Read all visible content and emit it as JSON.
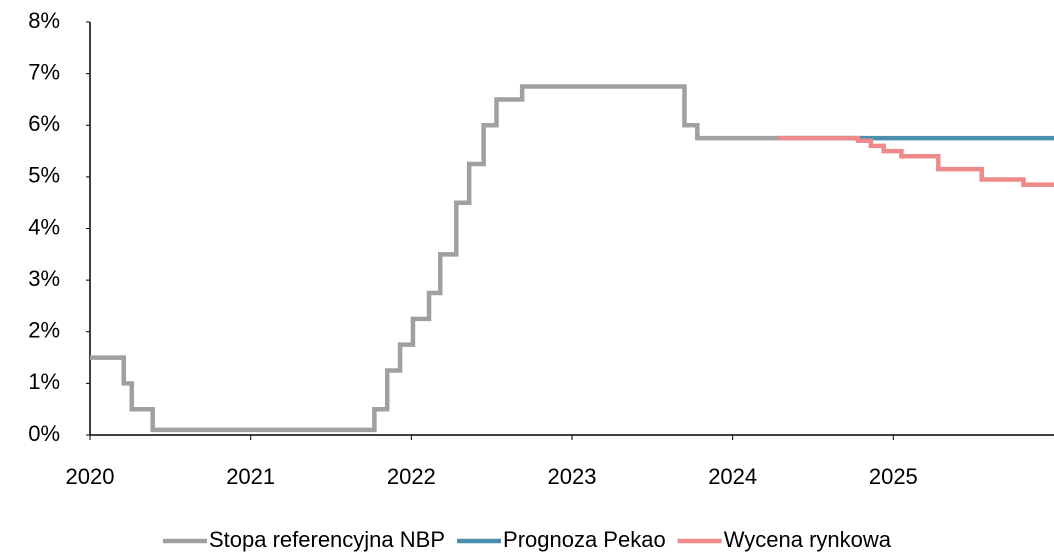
{
  "chart_data": {
    "type": "line",
    "xlim": [
      2020,
      2026
    ],
    "xticks": [
      2020,
      2021,
      2022,
      2023,
      2024,
      2025
    ],
    "ylim": [
      0,
      8
    ],
    "yticks": [
      {
        "value": 0,
        "label": "0%"
      },
      {
        "value": 1,
        "label": "1%"
      },
      {
        "value": 2,
        "label": "2%"
      },
      {
        "value": 3,
        "label": "3%"
      },
      {
        "value": 4,
        "label": "4%"
      },
      {
        "value": 5,
        "label": "5%"
      },
      {
        "value": 6,
        "label": "6%"
      },
      {
        "value": 7,
        "label": "7%"
      },
      {
        "value": 8,
        "label": "8%"
      }
    ],
    "legend": "bottom",
    "series": [
      {
        "name": "Stopa referencyjna NBP",
        "color": "#a0a0a0",
        "x": [
          2020,
          2020.21,
          2020.21,
          2020.26,
          2020.26,
          2020.39,
          2020.39,
          2021.77,
          2021.77,
          2021.85,
          2021.85,
          2021.93,
          2021.93,
          2022.01,
          2022.01,
          2022.11,
          2022.11,
          2022.18,
          2022.18,
          2022.28,
          2022.28,
          2022.36,
          2022.36,
          2022.45,
          2022.45,
          2022.53,
          2022.53,
          2022.69,
          2022.69,
          2023.7,
          2023.7,
          2023.78,
          2023.78,
          2024.28
        ],
        "values": [
          1.5,
          1.5,
          1.0,
          1.0,
          0.5,
          0.5,
          0.1,
          0.1,
          0.5,
          0.5,
          1.25,
          1.25,
          1.75,
          1.75,
          2.25,
          2.25,
          2.75,
          2.75,
          3.5,
          3.5,
          4.5,
          4.5,
          5.25,
          5.25,
          6.0,
          6.0,
          6.5,
          6.5,
          6.75,
          6.75,
          6.0,
          6.0,
          5.75,
          5.75
        ]
      },
      {
        "name": "Prognoza Pekao",
        "color": "#4a8fad",
        "x": [
          2024.28,
          2026
        ],
        "values": [
          5.75,
          5.75
        ]
      },
      {
        "name": "Wycena rynkowa",
        "color": "#ee8a8a",
        "x": [
          2024.28,
          2024.78,
          2024.78,
          2024.86,
          2024.86,
          2024.94,
          2024.94,
          2025.05,
          2025.05,
          2025.28,
          2025.28,
          2025.55,
          2025.55,
          2025.81,
          2025.81,
          2026
        ],
        "values": [
          5.75,
          5.75,
          5.7,
          5.7,
          5.6,
          5.6,
          5.5,
          5.5,
          5.4,
          5.4,
          5.15,
          5.15,
          4.95,
          4.95,
          4.85,
          4.85
        ]
      }
    ]
  }
}
